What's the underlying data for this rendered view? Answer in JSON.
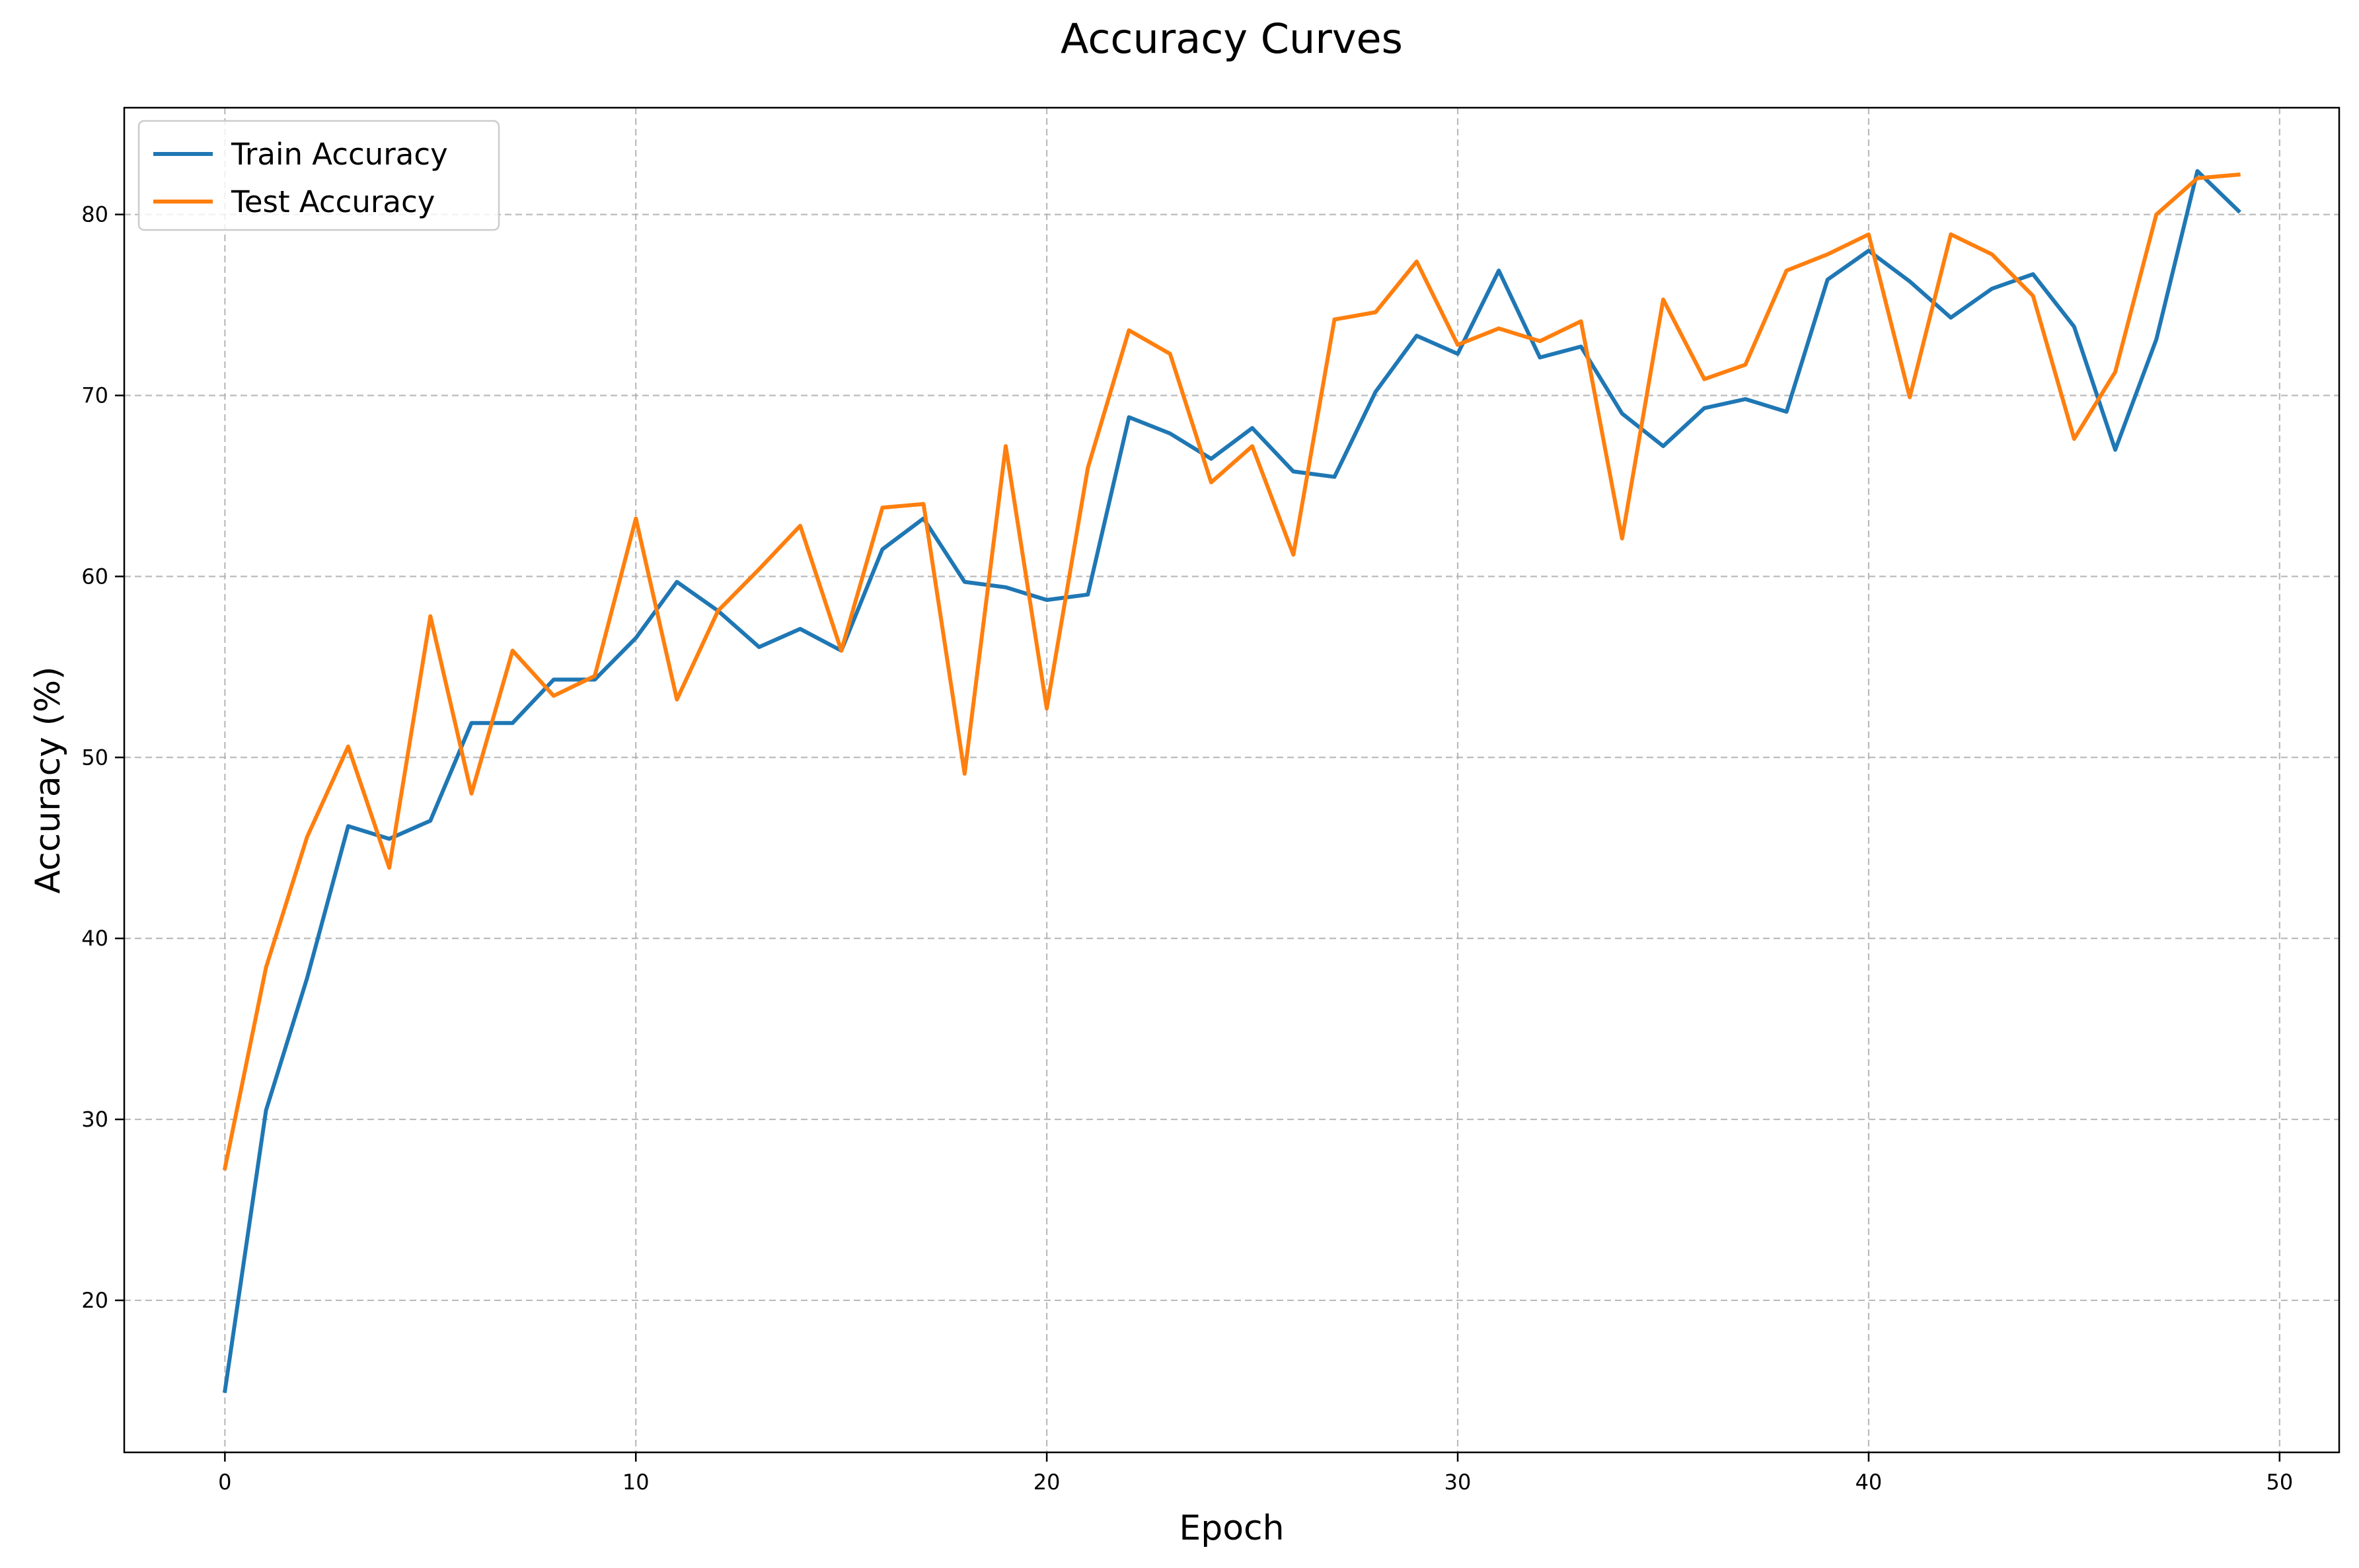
{
  "chart_data": {
    "type": "line",
    "title": "Accuracy Curves",
    "xlabel": "Epoch",
    "ylabel": "Accuracy (%)",
    "xlim": [
      -2.45,
      51.45
    ],
    "ylim": [
      11.6,
      85.9
    ],
    "xticks": [
      0,
      10,
      20,
      30,
      40,
      50
    ],
    "yticks": [
      20,
      30,
      40,
      50,
      60,
      70,
      80
    ],
    "grid": true,
    "legend_position": "top-left",
    "x": [
      0,
      1,
      2,
      3,
      4,
      5,
      6,
      7,
      8,
      9,
      10,
      11,
      12,
      13,
      14,
      15,
      16,
      17,
      18,
      19,
      20,
      21,
      22,
      23,
      24,
      25,
      26,
      27,
      28,
      29,
      30,
      31,
      32,
      33,
      34,
      35,
      36,
      37,
      38,
      39,
      40,
      41,
      42,
      43,
      44,
      45,
      46,
      47,
      48,
      49
    ],
    "series": [
      {
        "name": "Train Accuracy",
        "color": "#1f77b4",
        "values": [
          15.0,
          30.5,
          37.8,
          46.2,
          45.5,
          46.5,
          51.9,
          51.9,
          54.3,
          54.3,
          56.6,
          59.7,
          58.1,
          56.1,
          57.1,
          55.9,
          61.5,
          63.2,
          59.7,
          59.4,
          58.7,
          59.0,
          68.8,
          67.9,
          66.5,
          68.2,
          65.8,
          65.5,
          70.2,
          73.3,
          72.3,
          76.9,
          72.1,
          72.7,
          69.0,
          67.2,
          69.3,
          69.8,
          69.1,
          76.4,
          78.0,
          76.3,
          74.3,
          75.9,
          76.7,
          73.8,
          67.0,
          73.1,
          82.4,
          80.2
        ]
      },
      {
        "name": "Test Accuracy",
        "color": "#ff7f0e",
        "values": [
          27.3,
          38.4,
          45.6,
          50.6,
          43.9,
          57.8,
          48.0,
          55.9,
          53.4,
          54.5,
          63.2,
          53.2,
          58.1,
          60.4,
          62.8,
          55.9,
          63.8,
          64.0,
          49.1,
          67.2,
          52.7,
          66.0,
          73.6,
          72.3,
          65.2,
          67.2,
          61.2,
          74.2,
          74.6,
          77.4,
          72.8,
          73.7,
          73.0,
          74.1,
          62.1,
          75.3,
          70.9,
          71.7,
          76.9,
          77.8,
          78.9,
          69.9,
          78.9,
          77.8,
          75.5,
          67.6,
          71.3,
          80.0,
          82.0,
          82.2
        ]
      }
    ]
  }
}
